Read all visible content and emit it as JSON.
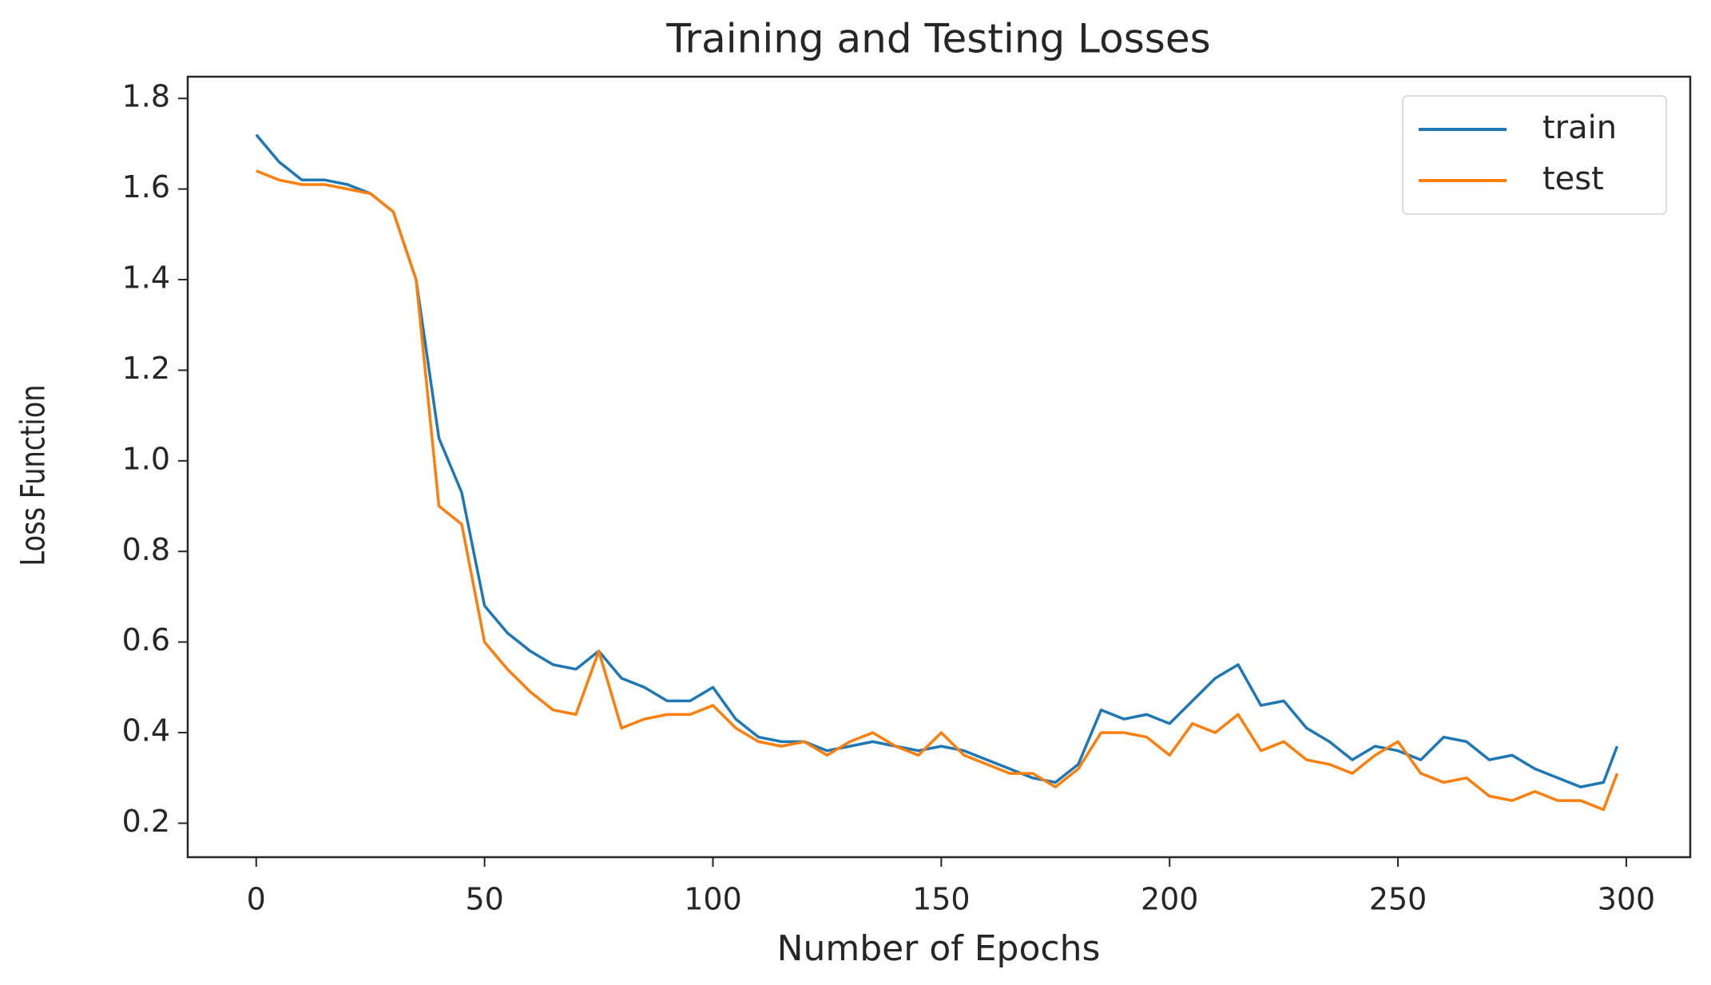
{
  "chart_data": {
    "type": "line",
    "title": "Training and Testing Losses",
    "x_label": "Number of Epochs",
    "y_label": "Loss Function",
    "x": [
      0,
      5,
      10,
      15,
      20,
      25,
      30,
      35,
      40,
      45,
      50,
      55,
      60,
      65,
      70,
      75,
      80,
      85,
      90,
      95,
      100,
      105,
      110,
      115,
      120,
      125,
      130,
      135,
      140,
      145,
      150,
      155,
      160,
      165,
      170,
      175,
      180,
      185,
      190,
      195,
      200,
      205,
      210,
      215,
      220,
      225,
      230,
      235,
      240,
      245,
      250,
      255,
      260,
      265,
      270,
      275,
      280,
      285,
      290,
      295,
      298
    ],
    "series": [
      {
        "name": "train",
        "color": "#1f77b4",
        "values": [
          1.72,
          1.66,
          1.62,
          1.62,
          1.61,
          1.59,
          1.55,
          1.4,
          1.05,
          0.93,
          0.68,
          0.62,
          0.58,
          0.55,
          0.54,
          0.58,
          0.52,
          0.5,
          0.47,
          0.47,
          0.5,
          0.43,
          0.39,
          0.38,
          0.38,
          0.36,
          0.37,
          0.38,
          0.37,
          0.36,
          0.37,
          0.36,
          0.34,
          0.32,
          0.3,
          0.29,
          0.33,
          0.45,
          0.43,
          0.44,
          0.42,
          0.47,
          0.52,
          0.55,
          0.46,
          0.47,
          0.41,
          0.38,
          0.34,
          0.37,
          0.36,
          0.34,
          0.39,
          0.38,
          0.34,
          0.35,
          0.32,
          0.3,
          0.28,
          0.29,
          0.37
        ]
      },
      {
        "name": "test",
        "color": "#ff7f0e",
        "values": [
          1.64,
          1.62,
          1.61,
          1.61,
          1.6,
          1.59,
          1.55,
          1.4,
          0.9,
          0.86,
          0.6,
          0.54,
          0.49,
          0.45,
          0.44,
          0.58,
          0.41,
          0.43,
          0.44,
          0.44,
          0.46,
          0.41,
          0.38,
          0.37,
          0.38,
          0.35,
          0.38,
          0.4,
          0.37,
          0.35,
          0.4,
          0.35,
          0.33,
          0.31,
          0.31,
          0.28,
          0.32,
          0.4,
          0.4,
          0.39,
          0.35,
          0.42,
          0.4,
          0.44,
          0.36,
          0.38,
          0.34,
          0.33,
          0.31,
          0.35,
          0.38,
          0.31,
          0.29,
          0.3,
          0.26,
          0.25,
          0.27,
          0.25,
          0.25,
          0.23,
          0.31
        ]
      }
    ],
    "xlim": [
      -15,
      314
    ],
    "ylim": [
      0.125,
      1.848
    ],
    "xticks": [
      0,
      50,
      100,
      150,
      200,
      250,
      300
    ],
    "yticks": [
      0.2,
      0.4,
      0.6,
      0.8,
      {
        "value": 1,
        "label": "1.0"
      },
      1.2,
      1.4,
      1.6,
      1.8
    ],
    "legend": "upper right",
    "grid": false
  }
}
